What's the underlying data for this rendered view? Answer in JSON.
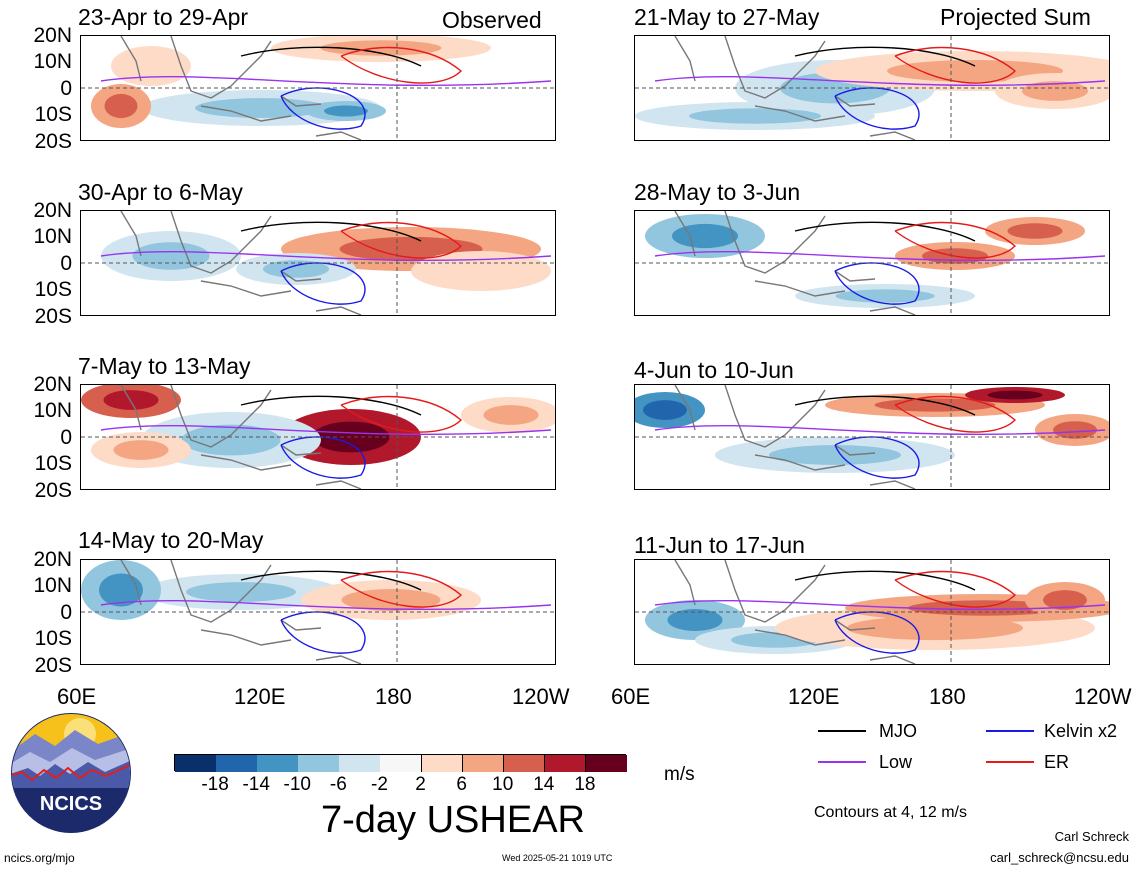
{
  "figure": {
    "title": "7-day USHEAR",
    "units": "m/s",
    "contour_note": "Contours at 4, 12 m/s",
    "author": "Carl Schreck",
    "email": "carl_schreck@ncsu.edu",
    "site": "ncics.org/mjo",
    "timestamp": "Wed 2025-05-21 1019 UTC",
    "logo_text": "NCICS"
  },
  "columns": [
    {
      "tag": "Observed",
      "panels": [
        "23-Apr to 29-Apr",
        "30-Apr to 6-May",
        "7-May to 13-May",
        "14-May to 20-May"
      ]
    },
    {
      "tag": "Projected Sum",
      "panels": [
        "21-May to 27-May",
        "28-May to 3-Jun",
        "4-Jun to 10-Jun",
        "11-Jun to 17-Jun"
      ]
    }
  ],
  "lat_labels": [
    "20N",
    "10N",
    "0",
    "10S",
    "20S"
  ],
  "lon_labels": [
    "60E",
    "120E",
    "180",
    "120W"
  ],
  "legend": [
    {
      "label": "MJO",
      "color": "#000000"
    },
    {
      "label": "Kelvin x2",
      "color": "#1a1ae6"
    },
    {
      "label": "Low",
      "color": "#9933ee"
    },
    {
      "label": "ER",
      "color": "#e61a1a"
    }
  ],
  "colorbar": {
    "colors": [
      "#08306b",
      "#2166ac",
      "#4393c3",
      "#92c5de",
      "#d1e5f0",
      "#f7f7f7",
      "#fddbc7",
      "#f4a582",
      "#d6604d",
      "#b2182b",
      "#67001f"
    ],
    "labels": [
      "-18",
      "-14",
      "-10",
      "-6",
      "-2",
      "2",
      "6",
      "10",
      "14",
      "18"
    ]
  }
}
